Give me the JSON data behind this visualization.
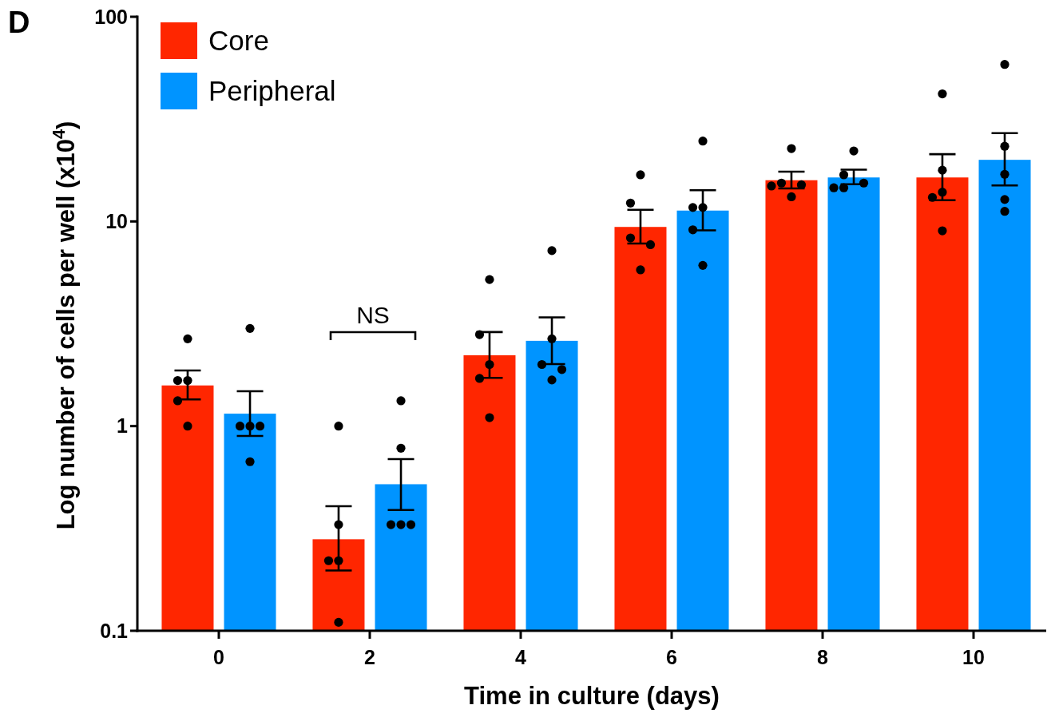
{
  "chart_data": {
    "type": "bar",
    "annotations": [
      "D",
      "NS"
    ],
    "xlabel": "Time in culture (days)",
    "ylabel": "Log number of cells per well (x10$^{4}$)",
    "categories": [
      "0",
      "2",
      "4",
      "6",
      "8",
      "10"
    ],
    "series": [
      {
        "name": "Core",
        "color": "#ff2600",
        "values": [
          1.58,
          0.28,
          2.22,
          9.4,
          15.9,
          16.4
        ],
        "errors": [
          [
            1.35,
            1.87
          ],
          [
            0.197,
            0.406
          ],
          [
            1.72,
            2.88
          ],
          [
            7.8,
            11.4
          ],
          [
            14.5,
            17.5
          ],
          [
            12.7,
            21.3
          ]
        ]
      },
      {
        "name": "Peripheral",
        "color": "#0094ff",
        "values": [
          1.15,
          0.52,
          2.61,
          11.3,
          16.4,
          20.0
        ],
        "errors": [
          [
            0.895,
            1.48
          ],
          [
            0.389,
            0.69
          ],
          [
            2.01,
            3.4
          ],
          [
            9.04,
            14.2
          ],
          [
            15.2,
            17.9
          ],
          [
            15.0,
            27.0
          ]
        ]
      },
      {
        "type": "scatter",
        "color": "#000000",
        "x": [
          "0",
          "0",
          "0",
          "0",
          "0",
          "2",
          "2",
          "2",
          "2",
          "2",
          "4",
          "4",
          "4",
          "4",
          "4",
          "6",
          "6",
          "6",
          "6",
          "6",
          "8",
          "8",
          "8",
          "8",
          "8",
          "10",
          "10",
          "10",
          "10",
          "10"
        ],
        "values": [
          2.67,
          1.67,
          1.67,
          1.33,
          1.0,
          1.0,
          0.33,
          0.22,
          0.22,
          0.11,
          5.2,
          2.8,
          2.0,
          1.71,
          1.1,
          16.9,
          12.3,
          8.3,
          7.7,
          5.8,
          22.7,
          15.4,
          15.1,
          14.9,
          13.2,
          42,
          17.8,
          13.9,
          13.1,
          9.0
        ]
      },
      {
        "type": "scatter",
        "color": "#000000",
        "x": [
          "0",
          "0",
          "0",
          "0",
          "0",
          "2",
          "2",
          "2",
          "2",
          "2",
          "4",
          "4",
          "4",
          "4",
          "4",
          "6",
          "6",
          "6",
          "6",
          "6",
          "8",
          "8",
          "8",
          "8",
          "8",
          "10",
          "10",
          "10",
          "10",
          "10"
        ],
        "values": [
          3.0,
          1.0,
          1.0,
          1.0,
          0.67,
          1.33,
          0.78,
          0.33,
          0.33,
          0.33,
          7.2,
          2.67,
          2.0,
          1.89,
          1.68,
          24.7,
          11.7,
          11.7,
          9.1,
          6.1,
          22.1,
          16.9,
          15.4,
          14.6,
          14.6,
          58.5,
          23.3,
          17.0,
          12.8,
          11.2
        ]
      }
    ],
    "log": true,
    "ylim": [
      0.1,
      100
    ],
    "yticks": [
      0.1,
      1,
      10,
      100
    ],
    "legend": "top left",
    "marker": "circle"
  }
}
